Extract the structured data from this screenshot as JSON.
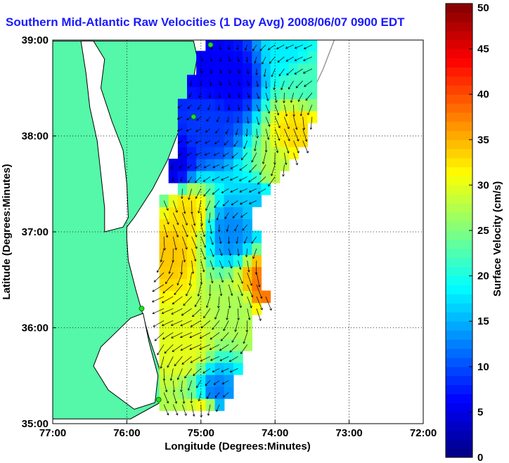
{
  "title": "Southern Mid-Atlantic Raw Velocities (1 Day Avg) 2008/06/07 0900 EDT",
  "colors": {
    "title": "#1a1aff",
    "land": "#55f7a8",
    "ocean": "#ffffff",
    "coast": "#000000",
    "isobath": "#9a9a9a",
    "station": "#22dd22",
    "arrow": "#000000",
    "colormap": "jet"
  },
  "icons": {
    "station_marker": "green-circle-marker"
  },
  "chart_data": {
    "type": "heatmap",
    "subtype": "map-velocity-field",
    "title": "Southern Mid-Atlantic Raw Velocities (1 Day Avg) 2008/06/07 0900 EDT",
    "xlabel": "Longitude (Degrees:Minutes)",
    "ylabel": "Latitude (Degrees:Minutes)",
    "xlim": [
      -77,
      -72
    ],
    "ylim": [
      35,
      39
    ],
    "x_ticks": [
      -77,
      -76,
      -75,
      -74,
      -73,
      -72
    ],
    "x_tick_labels": [
      "77:00",
      "76:00",
      "75:00",
      "74:00",
      "73:00",
      "72:00"
    ],
    "y_ticks": [
      35,
      36,
      37,
      38,
      39
    ],
    "y_tick_labels": [
      "35:00",
      "36:00",
      "37:00",
      "38:00",
      "39:00"
    ],
    "grid": true,
    "grid_style": "dotted",
    "colorbar": {
      "label": "Surface Velocity (cm/s)",
      "range": [
        0,
        50
      ],
      "ticks": [
        0,
        5,
        10,
        15,
        20,
        25,
        30,
        35,
        40,
        45,
        50
      ],
      "levels": 50,
      "colormap": "jet",
      "placement": "right"
    },
    "coastline": [
      [
        -77.0,
        38.99
      ],
      [
        -75.1,
        38.99
      ],
      [
        -75.05,
        38.82
      ],
      [
        -75.1,
        38.6
      ],
      [
        -75.18,
        38.3
      ],
      [
        -75.3,
        38.05
      ],
      [
        -75.45,
        37.75
      ],
      [
        -75.65,
        37.45
      ],
      [
        -75.9,
        37.15
      ],
      [
        -76.0,
        37.05
      ],
      [
        -76.0,
        36.93
      ],
      [
        -75.98,
        36.7
      ],
      [
        -75.88,
        36.4
      ],
      [
        -75.8,
        36.18
      ],
      [
        -75.7,
        35.9
      ],
      [
        -75.57,
        35.6
      ],
      [
        -75.5,
        35.35
      ],
      [
        -75.55,
        35.22
      ],
      [
        -75.95,
        35.05
      ],
      [
        -77.0,
        35.05
      ]
    ],
    "chesapeake_bay": [
      [
        -76.45,
        38.99
      ],
      [
        -76.3,
        38.8
      ],
      [
        -76.35,
        38.5
      ],
      [
        -76.2,
        38.15
      ],
      [
        -76.05,
        37.85
      ],
      [
        -76.0,
        37.5
      ],
      [
        -75.98,
        37.15
      ],
      [
        -76.05,
        37.05
      ],
      [
        -76.3,
        37.0
      ],
      [
        -76.3,
        37.25
      ],
      [
        -76.35,
        37.6
      ],
      [
        -76.4,
        37.95
      ],
      [
        -76.5,
        38.3
      ],
      [
        -76.55,
        38.65
      ],
      [
        -76.62,
        38.99
      ]
    ],
    "pamlico_sound": [
      [
        -75.78,
        36.15
      ],
      [
        -75.95,
        36.1
      ],
      [
        -76.15,
        35.95
      ],
      [
        -76.35,
        35.8
      ],
      [
        -76.45,
        35.6
      ],
      [
        -76.25,
        35.35
      ],
      [
        -75.9,
        35.15
      ],
      [
        -75.62,
        35.22
      ],
      [
        -75.58,
        35.5
      ],
      [
        -75.7,
        35.85
      ]
    ],
    "isobath": [
      [
        -73.2,
        39.0
      ],
      [
        -73.35,
        38.7
      ],
      [
        -73.5,
        38.45
      ],
      [
        -73.75,
        38.2
      ],
      [
        -73.95,
        37.95
      ],
      [
        -74.15,
        37.7
      ],
      [
        -74.35,
        37.45
      ],
      [
        -74.55,
        37.15
      ],
      [
        -74.7,
        36.85
      ],
      [
        -74.8,
        36.6
      ],
      [
        -74.85,
        36.3
      ],
      [
        -74.88,
        36.0
      ],
      [
        -74.95,
        35.7
      ],
      [
        -75.05,
        35.4
      ],
      [
        -75.15,
        35.15
      ]
    ],
    "stations": [
      {
        "lon": -74.87,
        "lat": 38.95
      },
      {
        "lon": -75.1,
        "lat": 38.2
      },
      {
        "lon": -75.8,
        "lat": 36.2
      },
      {
        "lon": -75.57,
        "lat": 35.25
      }
    ],
    "velocity_field": {
      "lon_start": -75.5,
      "lat_start": 35.2,
      "step": 0.125,
      "anchors": [
        {
          "lon": -74.9,
          "lat": 38.7,
          "speed": 6
        },
        {
          "lon": -74.6,
          "lat": 38.6,
          "speed": 6
        },
        {
          "lon": -74.9,
          "lat": 38.1,
          "speed": 9
        },
        {
          "lon": -75.4,
          "lat": 37.7,
          "speed": 5
        },
        {
          "lon": -73.8,
          "lat": 38.9,
          "speed": 18
        },
        {
          "lon": -73.6,
          "lat": 38.6,
          "speed": 22
        },
        {
          "lon": -73.7,
          "lat": 38.05,
          "speed": 33
        },
        {
          "lon": -73.95,
          "lat": 37.6,
          "speed": 28
        },
        {
          "lon": -75.2,
          "lat": 37.2,
          "speed": 33
        },
        {
          "lon": -75.4,
          "lat": 36.8,
          "speed": 34
        },
        {
          "lon": -74.15,
          "lat": 36.45,
          "speed": 38
        },
        {
          "lon": -74.5,
          "lat": 36.2,
          "speed": 27
        },
        {
          "lon": -75.2,
          "lat": 35.8,
          "speed": 30
        },
        {
          "lon": -74.6,
          "lat": 37.0,
          "speed": 13
        },
        {
          "lon": -74.2,
          "lat": 37.3,
          "speed": 16
        },
        {
          "lon": -74.8,
          "lat": 35.3,
          "speed": 12
        },
        {
          "lon": -74.9,
          "lat": 35.1,
          "speed": 34
        }
      ]
    }
  }
}
